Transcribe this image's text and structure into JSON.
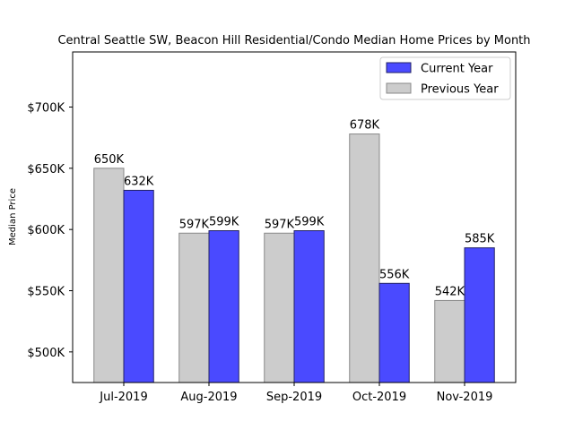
{
  "chart_data": {
    "type": "bar",
    "title": "Central Seattle SW, Beacon Hill Residential/Condo Median Home Prices by Month",
    "xlabel": "",
    "ylabel": "Median Price",
    "categories": [
      "Jul-2019",
      "Aug-2019",
      "Sep-2019",
      "Oct-2019",
      "Nov-2019"
    ],
    "series": [
      {
        "name": "Previous Year",
        "values": [
          650,
          597,
          597,
          678,
          542
        ],
        "labels": [
          "650K",
          "597K",
          "597K",
          "678K",
          "542K"
        ],
        "color": "#cccccc",
        "edge": "#888888"
      },
      {
        "name": "Current Year",
        "values": [
          632,
          599,
          599,
          556,
          585
        ],
        "labels": [
          "632K",
          "599K",
          "599K",
          "556K",
          "585K"
        ],
        "color": "#4a4aff",
        "edge": "#222266"
      }
    ],
    "ylim": [
      475,
      745
    ],
    "yticks": [
      500,
      550,
      600,
      650,
      700
    ],
    "ytick_labels": [
      "$500K",
      "$550K",
      "$600K",
      "$650K",
      "$700K"
    ],
    "legend_position": "upper-right",
    "legend_order": [
      "Current Year",
      "Previous Year"
    ],
    "grid": false
  }
}
